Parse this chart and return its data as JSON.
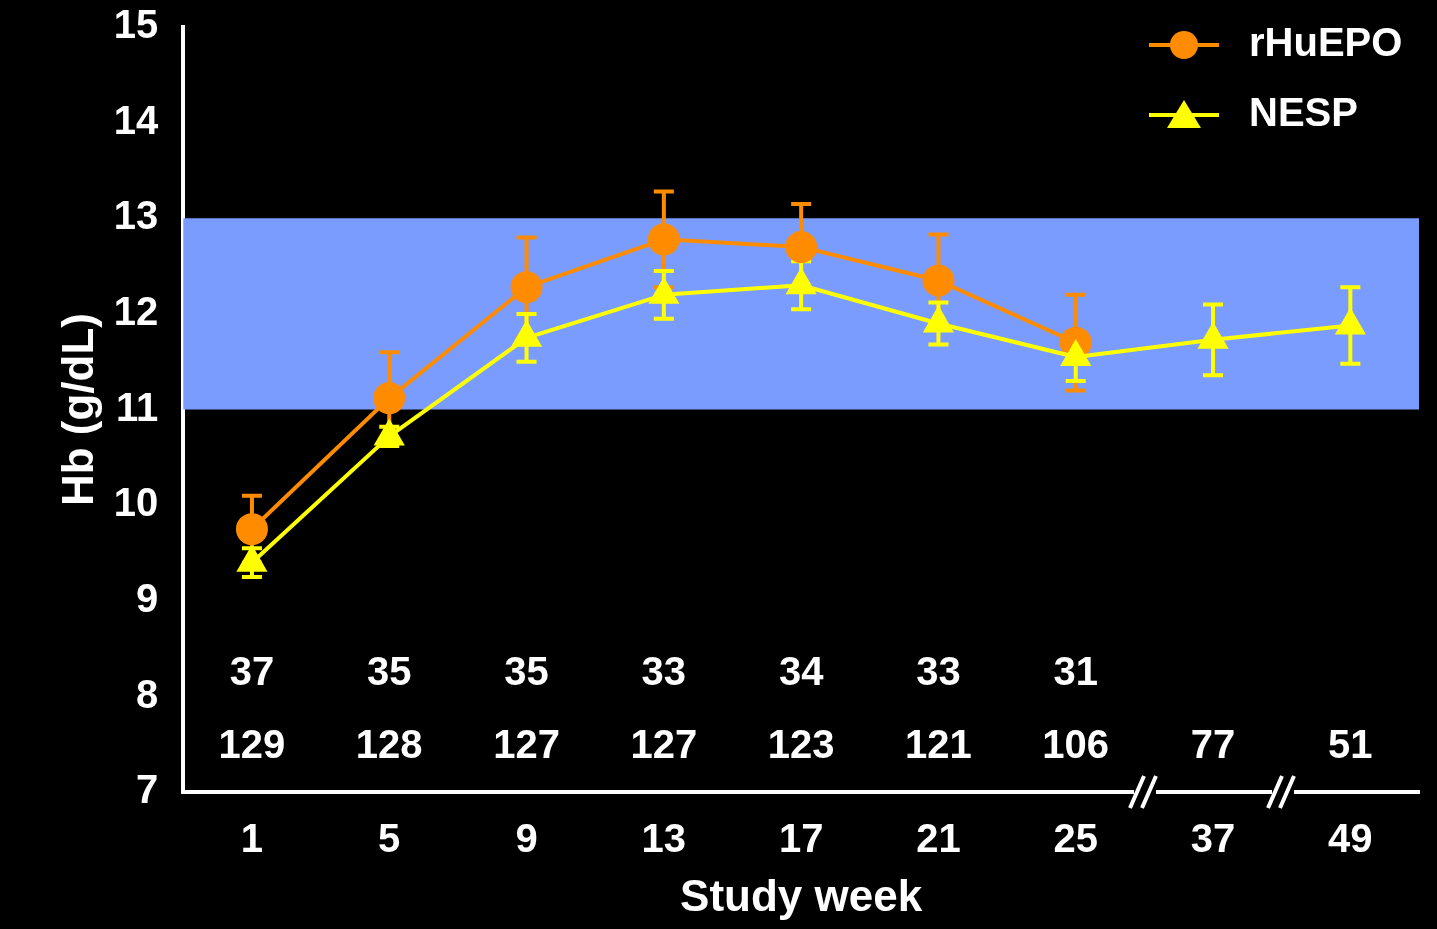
{
  "chart_data": {
    "type": "line",
    "xlabel": "Study week",
    "ylabel": "Hb (g/dL)",
    "categories": [
      "1",
      "5",
      "9",
      "13",
      "17",
      "21",
      "25",
      "37",
      "49"
    ],
    "ylim": [
      7,
      15
    ],
    "yticks": [
      7,
      8,
      9,
      10,
      11,
      12,
      13,
      14,
      15
    ],
    "grid": false,
    "legend": "top right",
    "bands": [
      {
        "axis": "y",
        "from": 11,
        "to": 13,
        "color": "#7b9cff"
      }
    ],
    "series": [
      {
        "name": "rHuEPO",
        "color": "#ff8c00",
        "marker": "circle",
        "values": [
          9.75,
          11.12,
          12.28,
          12.78,
          12.7,
          12.35,
          11.7,
          null,
          null
        ],
        "errors": [
          0.35,
          0.48,
          0.52,
          0.5,
          0.45,
          0.48,
          0.5,
          null,
          null
        ]
      },
      {
        "name": "NESP",
        "color": "#ffff00",
        "marker": "triangle",
        "values": [
          9.4,
          10.72,
          11.75,
          12.2,
          12.3,
          11.9,
          11.55,
          11.73,
          11.88
        ],
        "errors": [
          0.15,
          0.1,
          0.25,
          0.25,
          0.25,
          0.22,
          0.25,
          0.37,
          0.4
        ]
      }
    ],
    "annotations": [
      "37",
      "35",
      "35",
      "33",
      "34",
      "33",
      "31",
      "129",
      "128",
      "127",
      "127",
      "123",
      "121",
      "106",
      "77",
      "51"
    ]
  }
}
